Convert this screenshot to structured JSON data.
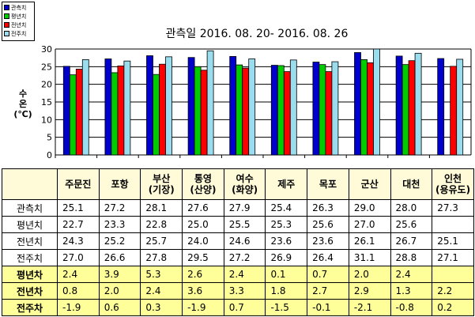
{
  "chart_data": {
    "type": "bar",
    "title": "관측일 2016. 08. 20- 2016. 08. 26",
    "ylabel_lines": [
      "수",
      "온",
      "(℃)"
    ],
    "ylim": [
      0,
      30
    ],
    "yticks": [
      0,
      5,
      10,
      15,
      20,
      25,
      30
    ],
    "categories": [
      "주문진",
      "포항",
      "부산(기장)",
      "통영(산양)",
      "여수(화양)",
      "제주",
      "목포",
      "군산",
      "대천",
      "인천(용유도)"
    ],
    "series": [
      {
        "name": "관측치",
        "color": "#0000cc",
        "values": [
          25.1,
          27.2,
          28.1,
          27.6,
          27.9,
          25.4,
          26.3,
          29.0,
          28.0,
          27.3
        ]
      },
      {
        "name": "평년치",
        "color": "#00cc00",
        "values": [
          22.7,
          23.3,
          22.8,
          25.0,
          25.5,
          25.3,
          25.6,
          27.0,
          25.6,
          null
        ]
      },
      {
        "name": "전년치",
        "color": "#ff0000",
        "values": [
          24.3,
          25.2,
          25.7,
          24.0,
          24.6,
          23.6,
          23.6,
          26.1,
          26.7,
          25.1
        ]
      },
      {
        "name": "전주치",
        "color": "#99ddee",
        "values": [
          27.0,
          26.6,
          27.8,
          29.5,
          27.2,
          26.9,
          26.4,
          31.1,
          28.8,
          27.1
        ]
      }
    ]
  },
  "table": {
    "columns": [
      [
        "주문진"
      ],
      [
        "포항"
      ],
      [
        "부산",
        "(기장)"
      ],
      [
        "통영",
        "(산양)"
      ],
      [
        "여수",
        "(화양)"
      ],
      [
        "제주"
      ],
      [
        "목포"
      ],
      [
        "군산"
      ],
      [
        "대천"
      ],
      [
        "인천",
        "(용유도)"
      ]
    ],
    "rows": [
      {
        "label": "관측치",
        "kind": "plain",
        "values": [
          "25.1",
          "27.2",
          "28.1",
          "27.6",
          "27.9",
          "25.4",
          "26.3",
          "29.0",
          "28.0",
          "27.3"
        ]
      },
      {
        "label": "평년치",
        "kind": "plain",
        "values": [
          "22.7",
          "23.3",
          "22.8",
          "25.0",
          "25.5",
          "25.3",
          "25.6",
          "27.0",
          "25.6",
          ""
        ]
      },
      {
        "label": "전년치",
        "kind": "plain",
        "values": [
          "24.3",
          "25.2",
          "25.7",
          "24.0",
          "24.6",
          "23.6",
          "23.6",
          "26.1",
          "26.7",
          "25.1"
        ]
      },
      {
        "label": "전주치",
        "kind": "plain",
        "values": [
          "27.0",
          "26.6",
          "27.8",
          "29.5",
          "27.2",
          "26.9",
          "26.4",
          "31.1",
          "28.8",
          "27.1"
        ]
      },
      {
        "label": "평년차",
        "kind": "diff",
        "values": [
          "2.4",
          "3.9",
          "5.3",
          "2.6",
          "2.4",
          "0.1",
          "0.7",
          "2.0",
          "2.4",
          ""
        ]
      },
      {
        "label": "전년차",
        "kind": "diff",
        "values": [
          "0.8",
          "2.0",
          "2.4",
          "3.6",
          "3.3",
          "1.8",
          "2.7",
          "2.9",
          "1.3",
          "2.2"
        ]
      },
      {
        "label": "전주차",
        "kind": "diff",
        "values": [
          "-1.9",
          "0.6",
          "0.3",
          "-1.9",
          "0.7",
          "-1.5",
          "-0.1",
          "-2.1",
          "-0.8",
          "0.2"
        ]
      }
    ]
  }
}
